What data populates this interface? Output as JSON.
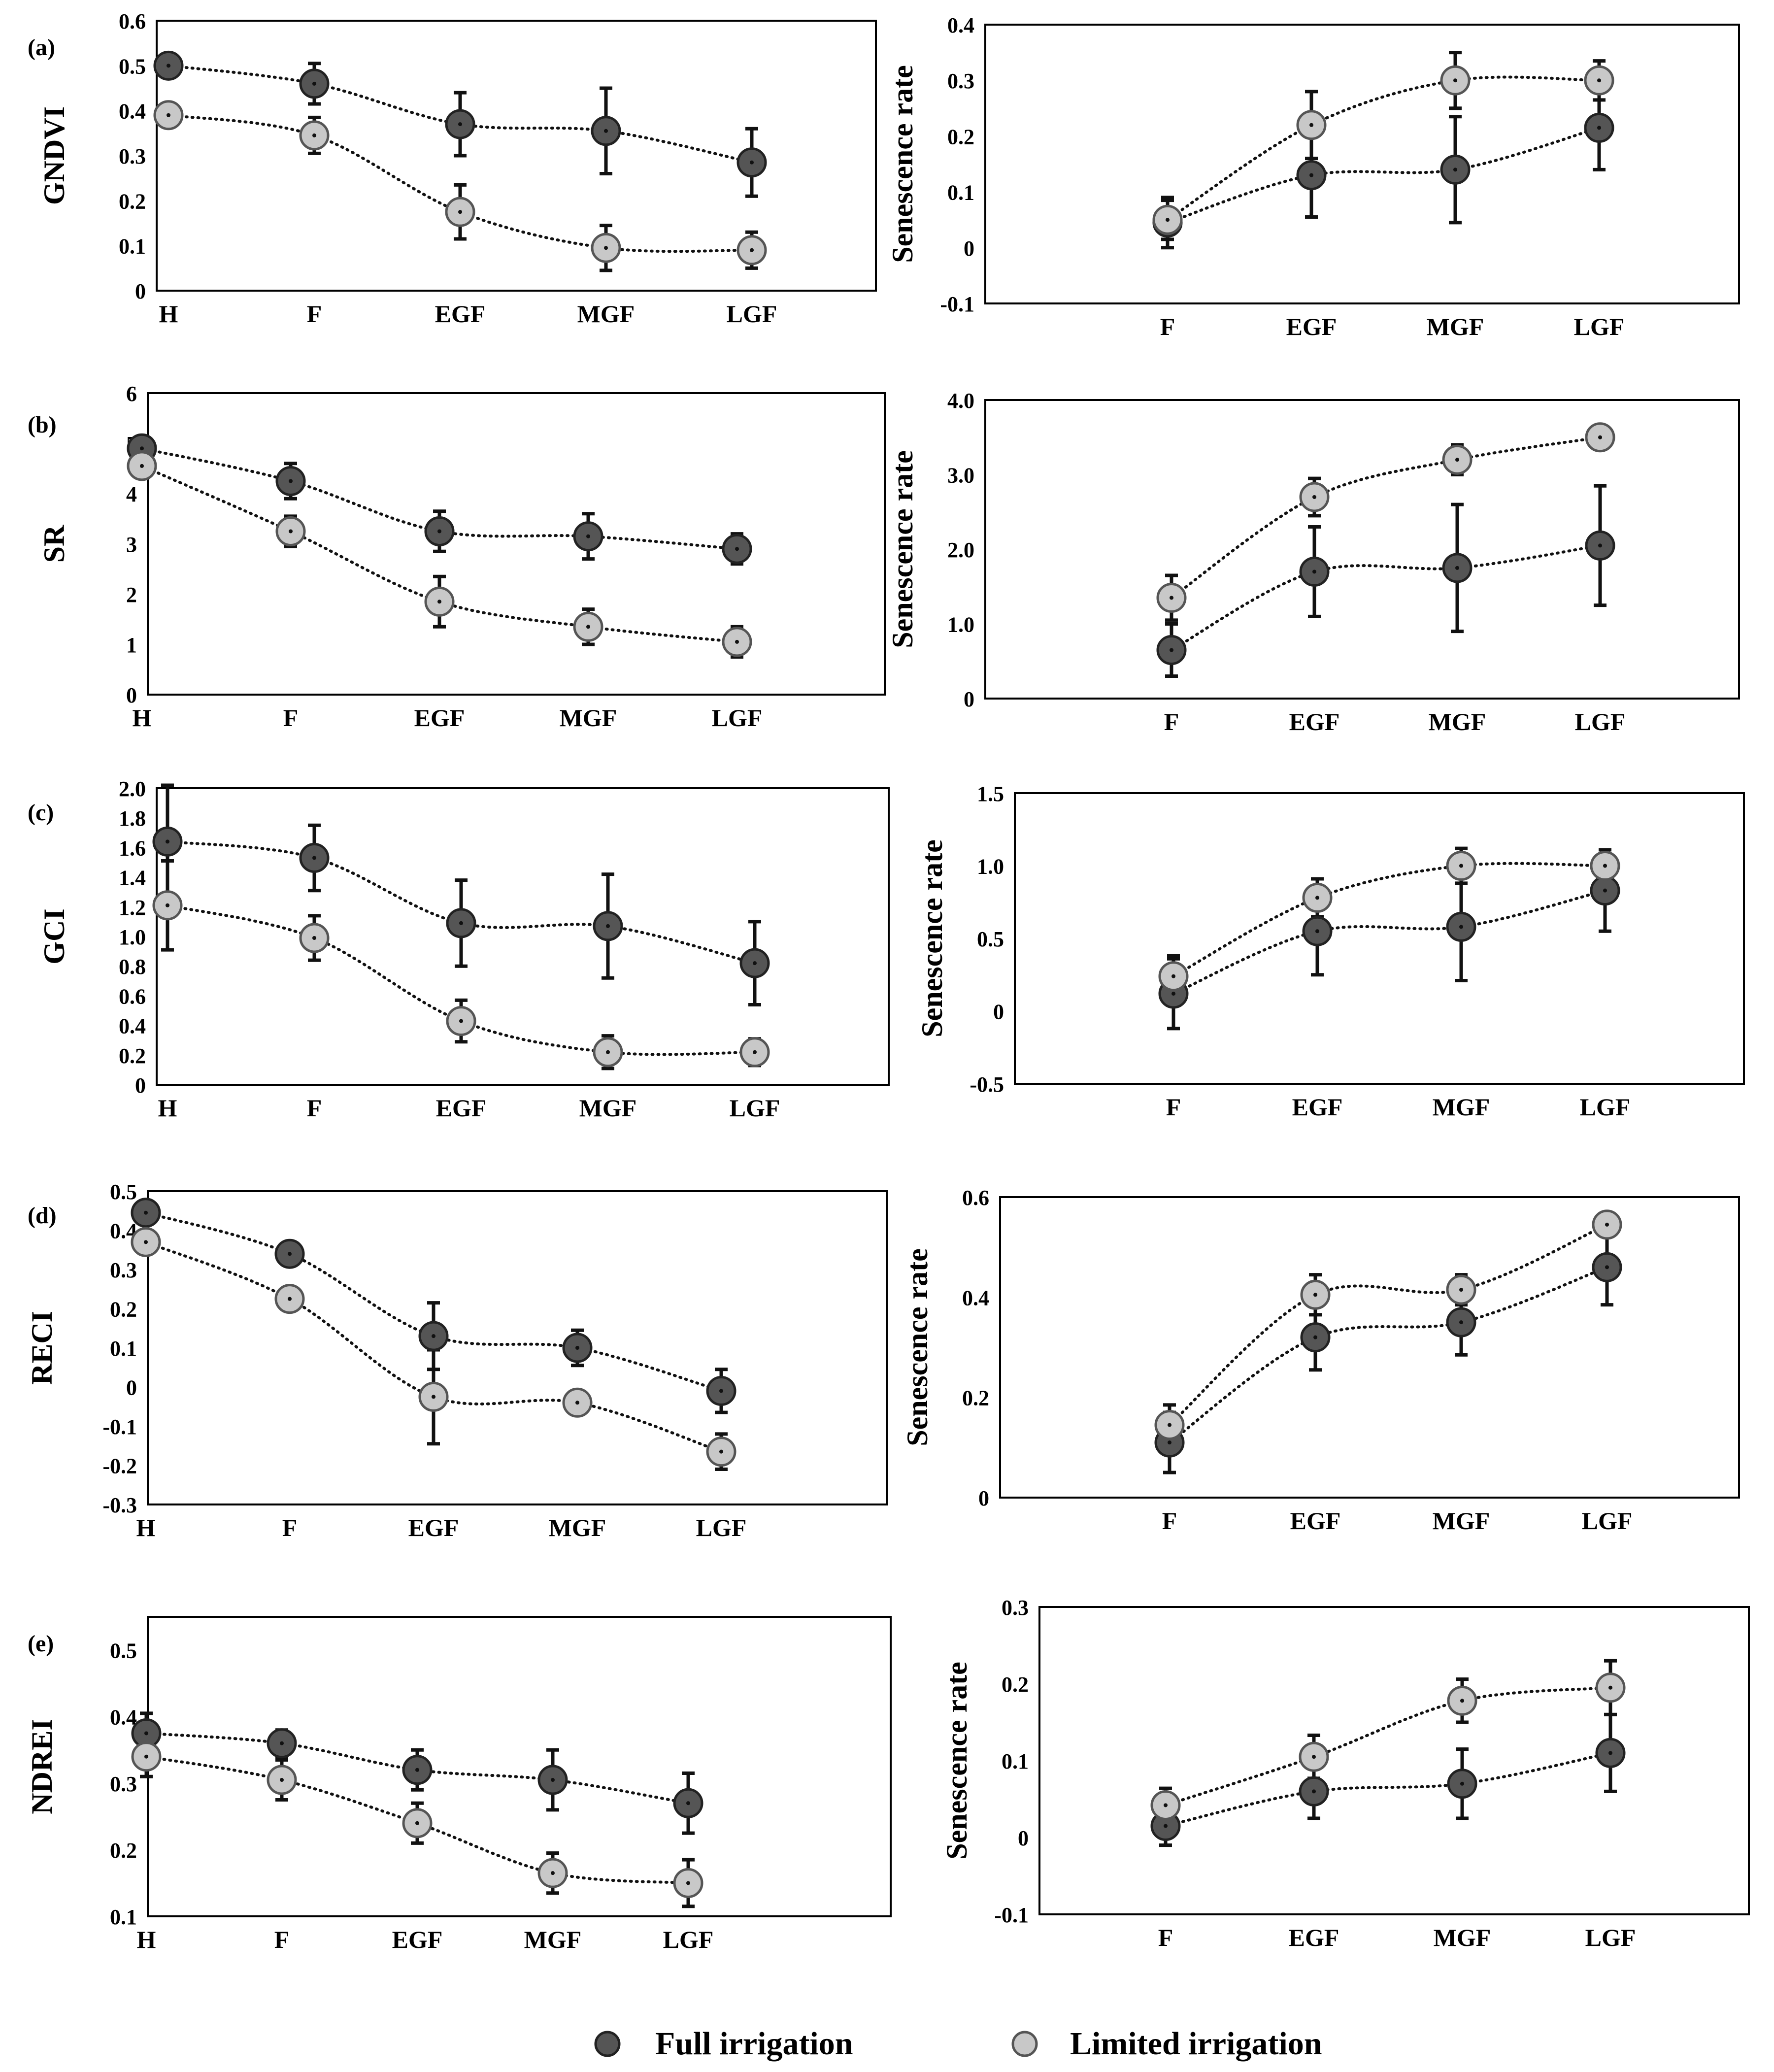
{
  "legend": {
    "full_label": "Full irrigation",
    "limited_label": "Limited irrigation",
    "full_color": "#555555",
    "limited_color": "#c8c8c8"
  },
  "chart_data": [
    {
      "id": "a-index",
      "type": "scatter",
      "panel_label": "(a)",
      "ylabel": "GNDVI",
      "categories": [
        "H",
        "F",
        "EGF",
        "MGF",
        "LGF"
      ],
      "ylim": [
        0,
        0.6
      ],
      "yticks": [
        0,
        0.1,
        0.2,
        0.3,
        0.4,
        0.5,
        0.6
      ],
      "decimals": 1,
      "series": [
        {
          "name": "Full irrigation",
          "values": [
            0.5,
            0.46,
            0.37,
            0.355,
            0.285
          ],
          "errors": [
            0,
            0.045,
            0.07,
            0.095,
            0.075
          ]
        },
        {
          "name": "Limited irrigation",
          "values": [
            0.39,
            0.345,
            0.175,
            0.095,
            0.09
          ],
          "errors": [
            0,
            0.04,
            0.06,
            0.05,
            0.04
          ]
        }
      ]
    },
    {
      "id": "a-rate",
      "type": "scatter",
      "ylabel": "Senescence rate",
      "categories": [
        "F",
        "EGF",
        "MGF",
        "LGF"
      ],
      "ylim": [
        -0.1,
        0.4
      ],
      "yticks": [
        -0.1,
        0,
        0.1,
        0.2,
        0.3,
        0.4
      ],
      "decimals": 1,
      "series": [
        {
          "name": "Full irrigation",
          "values": [
            0.045,
            0.13,
            0.14,
            0.215
          ],
          "errors": [
            0.045,
            0.075,
            0.095,
            0.075
          ]
        },
        {
          "name": "Limited irrigation",
          "values": [
            0.05,
            0.22,
            0.3,
            0.3
          ],
          "errors": [
            0.035,
            0.06,
            0.05,
            0.035
          ]
        }
      ]
    },
    {
      "id": "b-index",
      "type": "scatter",
      "panel_label": "(b)",
      "ylabel": "SR",
      "categories": [
        "H",
        "F",
        "EGF",
        "MGF",
        "LGF"
      ],
      "ylim": [
        0,
        6
      ],
      "yticks": [
        0,
        1,
        2,
        3,
        4,
        5,
        6
      ],
      "decimals": 0,
      "series": [
        {
          "name": "Full irrigation",
          "values": [
            4.9,
            4.25,
            3.25,
            3.15,
            2.9
          ],
          "errors": [
            0,
            0.35,
            0.4,
            0.45,
            0.3
          ]
        },
        {
          "name": "Limited irrigation",
          "values": [
            4.55,
            3.25,
            1.85,
            1.35,
            1.05
          ],
          "errors": [
            0,
            0.3,
            0.5,
            0.35,
            0.3
          ]
        }
      ]
    },
    {
      "id": "b-rate",
      "type": "scatter",
      "ylabel": "Senescence rate",
      "categories": [
        "F",
        "EGF",
        "MGF",
        "LGF"
      ],
      "ylim": [
        0,
        4
      ],
      "yticks": [
        0,
        1,
        2,
        3,
        4
      ],
      "decimals": 1,
      "series": [
        {
          "name": "Full irrigation",
          "values": [
            0.65,
            1.7,
            1.75,
            2.05
          ],
          "errors": [
            0.35,
            0.6,
            0.85,
            0.8
          ]
        },
        {
          "name": "Limited irrigation",
          "values": [
            1.35,
            2.7,
            3.2,
            3.5
          ],
          "errors": [
            0.3,
            0.25,
            0.2,
            0.1
          ]
        }
      ]
    },
    {
      "id": "c-index",
      "type": "scatter",
      "panel_label": "(c)",
      "ylabel": "GCI",
      "categories": [
        "H",
        "F",
        "EGF",
        "MGF",
        "LGF"
      ],
      "ylim": [
        0,
        2
      ],
      "yticks": [
        0,
        0.2,
        0.4,
        0.6,
        0.8,
        1.0,
        1.2,
        1.4,
        1.6,
        1.8,
        2.0
      ],
      "decimals": 1,
      "series": [
        {
          "name": "Full irrigation",
          "values": [
            1.64,
            1.53,
            1.09,
            1.07,
            0.82
          ],
          "errors": [
            0.38,
            0.22,
            0.29,
            0.35,
            0.28
          ]
        },
        {
          "name": "Limited irrigation",
          "values": [
            1.21,
            0.99,
            0.43,
            0.22,
            0.22
          ],
          "errors": [
            0.3,
            0.15,
            0.14,
            0.11,
            0.09
          ]
        }
      ]
    },
    {
      "id": "c-rate",
      "type": "scatter",
      "ylabel": "Senescence rate",
      "categories": [
        "F",
        "EGF",
        "MGF",
        "LGF"
      ],
      "ylim": [
        -0.5,
        1.5
      ],
      "yticks": [
        -0.5,
        0,
        0.5,
        1.0,
        1.5
      ],
      "decimals": 1,
      "series": [
        {
          "name": "Full irrigation",
          "values": [
            0.12,
            0.55,
            0.58,
            0.83
          ],
          "errors": [
            0.24,
            0.3,
            0.37,
            0.28
          ]
        },
        {
          "name": "Limited irrigation",
          "values": [
            0.24,
            0.78,
            1.0,
            1.0
          ],
          "errors": [
            0.14,
            0.13,
            0.12,
            0.08
          ]
        }
      ]
    },
    {
      "id": "d-index",
      "type": "scatter",
      "panel_label": "(d)",
      "ylabel": "RECI",
      "categories": [
        "H",
        "F",
        "EGF",
        "MGF",
        "LGF"
      ],
      "ylim": [
        -0.3,
        0.5
      ],
      "yticks": [
        -0.3,
        -0.2,
        -0.1,
        0,
        0.1,
        0.2,
        0.3,
        0.4,
        0.5
      ],
      "decimals": 1,
      "series": [
        {
          "name": "Full irrigation",
          "values": [
            0.445,
            0.34,
            0.13,
            0.1,
            -0.01
          ],
          "errors": [
            0,
            0.02,
            0.085,
            0.045,
            0.055
          ]
        },
        {
          "name": "Limited irrigation",
          "values": [
            0.37,
            0.225,
            -0.025,
            -0.04,
            -0.165
          ],
          "errors": [
            0,
            0.015,
            0.12,
            0.025,
            0.045
          ]
        }
      ]
    },
    {
      "id": "d-rate",
      "type": "scatter",
      "ylabel": "Senescence rate",
      "categories": [
        "F",
        "EGF",
        "MGF",
        "LGF"
      ],
      "ylim": [
        0,
        0.6
      ],
      "yticks": [
        0,
        0.2,
        0.4,
        0.6
      ],
      "decimals": 1,
      "series": [
        {
          "name": "Full irrigation",
          "values": [
            0.11,
            0.32,
            0.35,
            0.46
          ],
          "errors": [
            0.06,
            0.065,
            0.065,
            0.075
          ]
        },
        {
          "name": "Limited irrigation",
          "values": [
            0.145,
            0.405,
            0.415,
            0.545
          ],
          "errors": [
            0.04,
            0.04,
            0.03,
            0.02
          ]
        }
      ]
    },
    {
      "id": "e-index",
      "type": "scatter",
      "panel_label": "(e)",
      "ylabel": "NDREI",
      "categories": [
        "H",
        "F",
        "EGF",
        "MGF",
        "LGF"
      ],
      "ylim": [
        0.1,
        0.55
      ],
      "yticks": [
        0.1,
        0.2,
        0.3,
        0.4,
        0.5
      ],
      "decimals": 1,
      "series": [
        {
          "name": "Full irrigation",
          "values": [
            0.375,
            0.36,
            0.32,
            0.305,
            0.27
          ],
          "errors": [
            0.03,
            0.02,
            0.03,
            0.045,
            0.045
          ]
        },
        {
          "name": "Limited irrigation",
          "values": [
            0.34,
            0.305,
            0.24,
            0.165,
            0.15
          ],
          "errors": [
            0.03,
            0.03,
            0.03,
            0.03,
            0.035
          ]
        }
      ]
    },
    {
      "id": "e-rate",
      "type": "scatter",
      "ylabel": "Senescence rate",
      "categories": [
        "F",
        "EGF",
        "MGF",
        "LGF"
      ],
      "ylim": [
        -0.1,
        0.3
      ],
      "yticks": [
        -0.1,
        0,
        0.1,
        0.2,
        0.3
      ],
      "decimals": 1,
      "series": [
        {
          "name": "Full irrigation",
          "values": [
            0.015,
            0.06,
            0.07,
            0.11
          ],
          "errors": [
            0.025,
            0.035,
            0.045,
            0.05
          ]
        },
        {
          "name": "Limited irrigation",
          "values": [
            0.042,
            0.105,
            0.178,
            0.195
          ],
          "errors": [
            0.022,
            0.028,
            0.028,
            0.035
          ]
        }
      ]
    }
  ]
}
